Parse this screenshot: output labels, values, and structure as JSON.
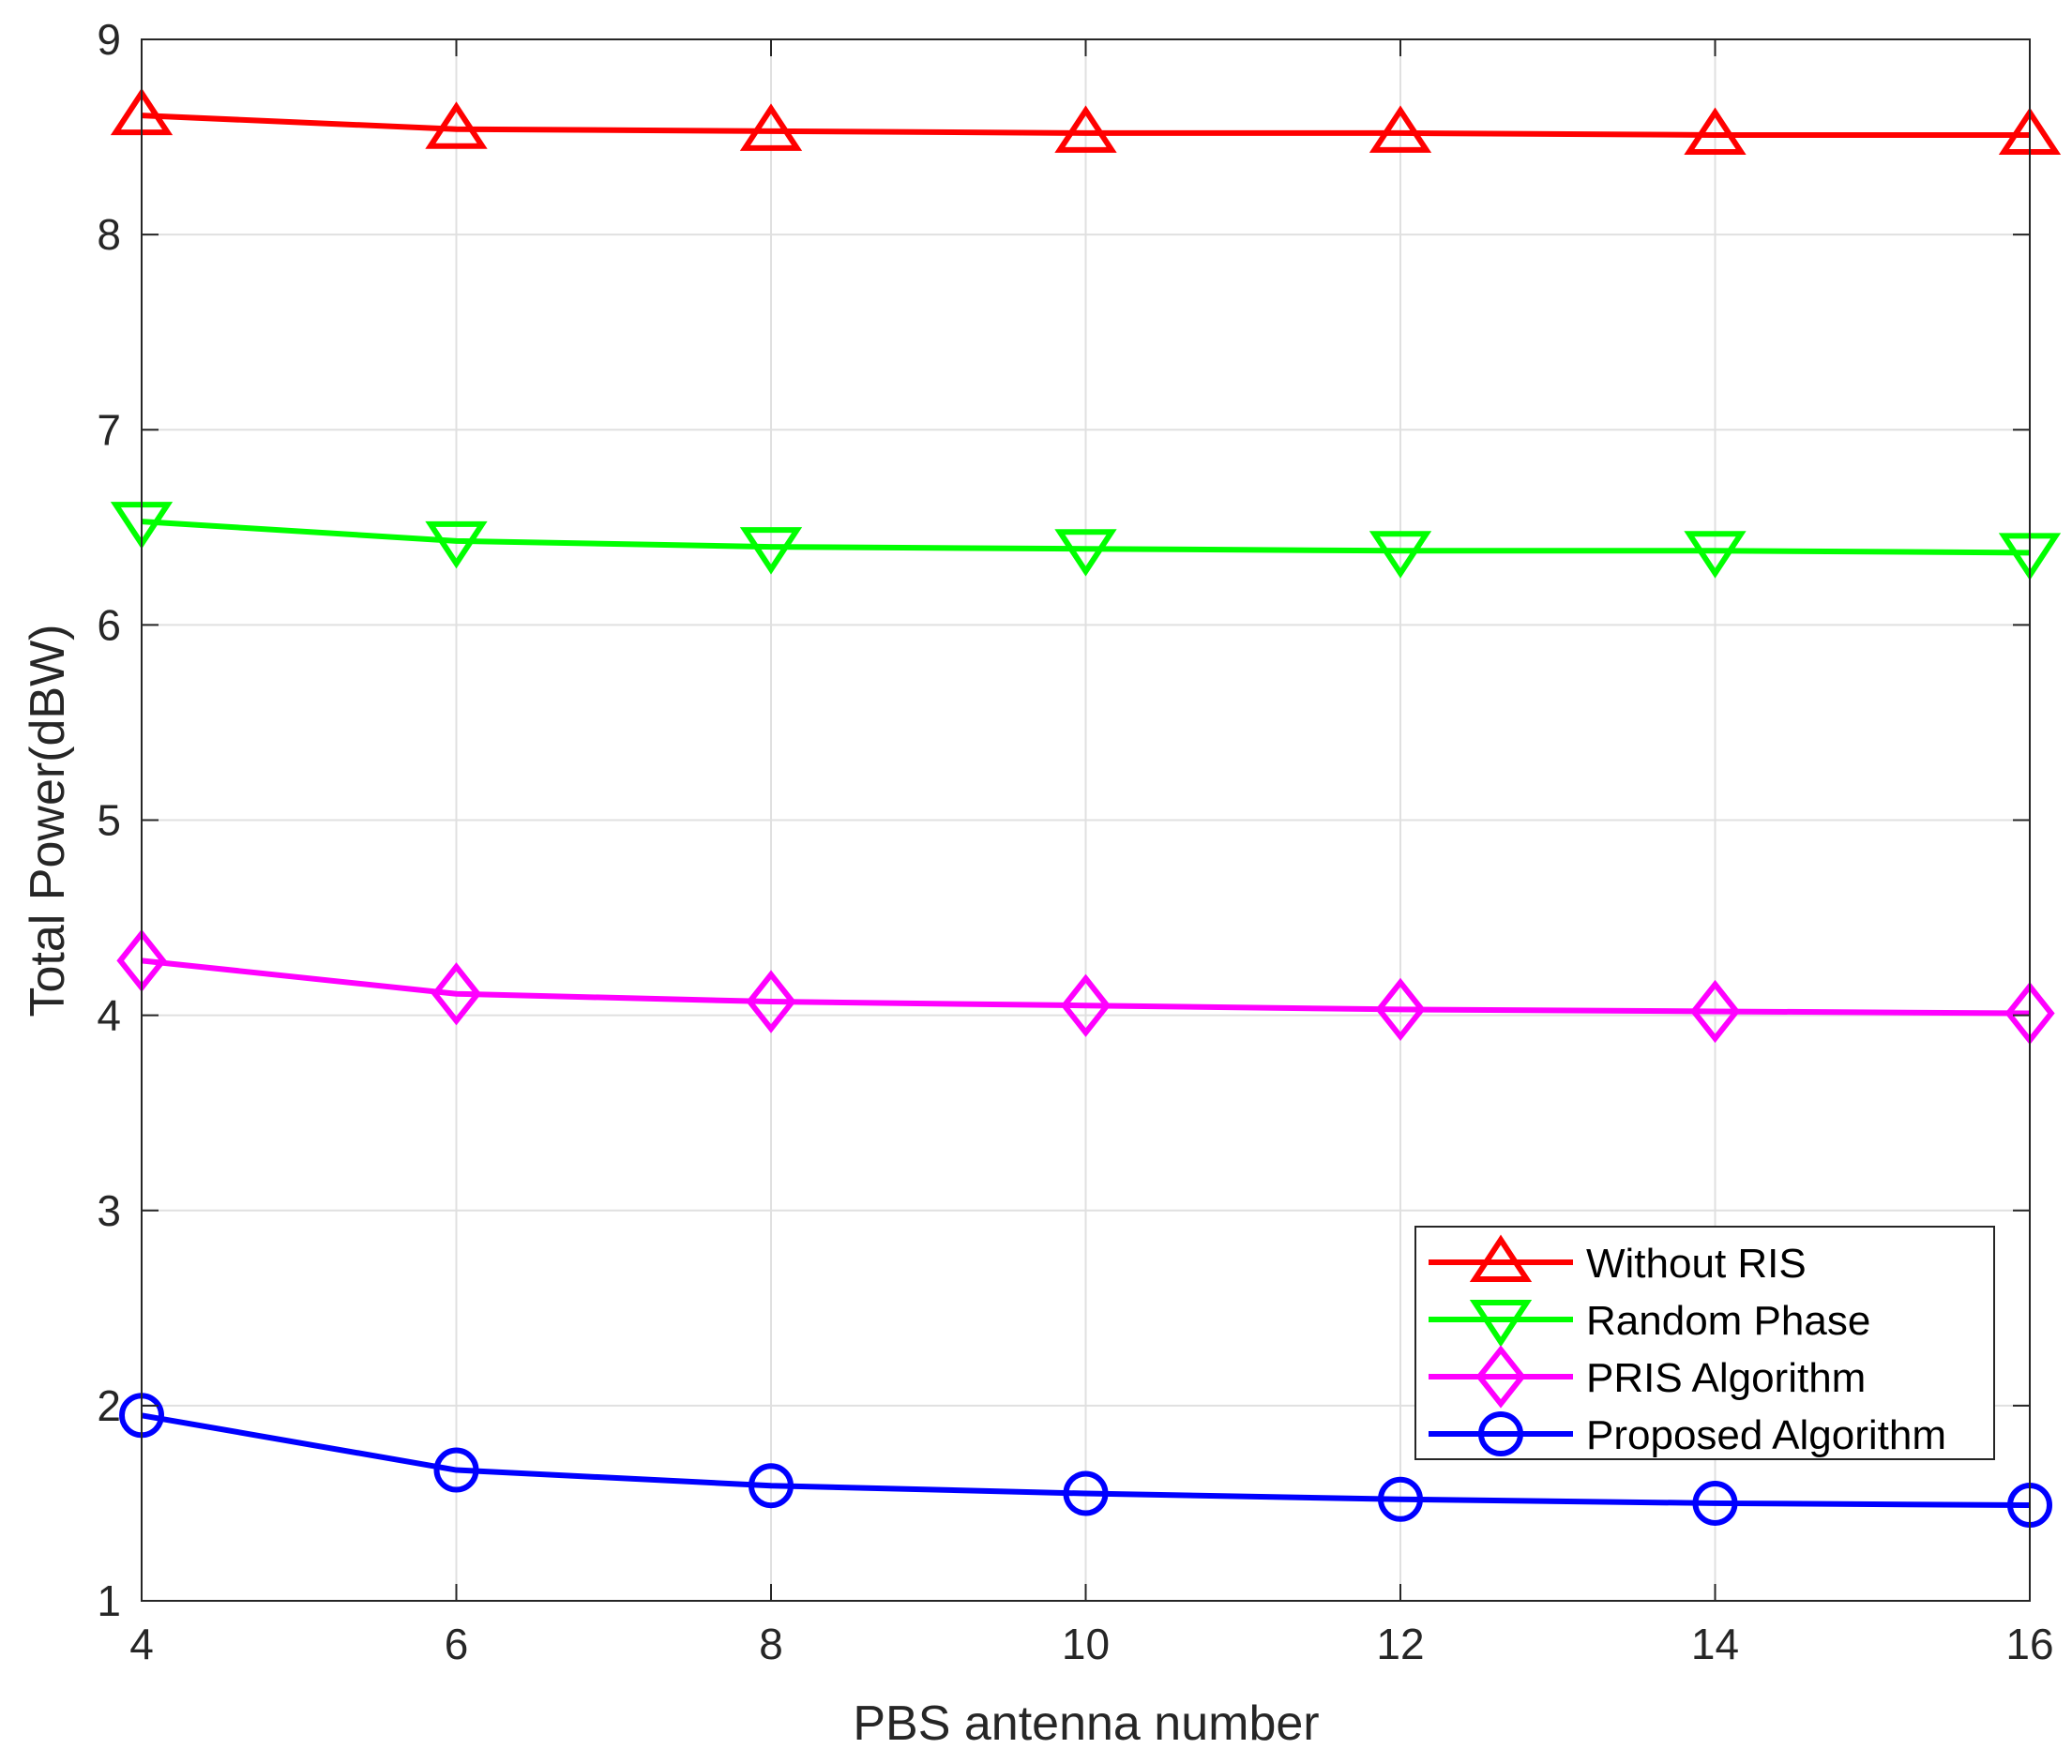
{
  "chart_data": {
    "type": "line",
    "title": "",
    "xlabel": "PBS antenna number",
    "ylabel": "Total Power(dBW)",
    "x": [
      4,
      6,
      8,
      10,
      12,
      14,
      16
    ],
    "xlim": [
      4,
      16
    ],
    "ylim": [
      1,
      9
    ],
    "xticks": [
      "4",
      "6",
      "8",
      "10",
      "12",
      "14",
      "16"
    ],
    "yticks": [
      "1",
      "2",
      "3",
      "4",
      "5",
      "6",
      "7",
      "8",
      "9"
    ],
    "grid": true,
    "legend_position": "bottom-right",
    "series": [
      {
        "name": "Without RIS",
        "color": "#ff0000",
        "marker": "triangle-up",
        "values": [
          8.61,
          8.54,
          8.53,
          8.52,
          8.52,
          8.51,
          8.51
        ]
      },
      {
        "name": "Random Phase",
        "color": "#00ff00",
        "marker": "triangle-down",
        "values": [
          6.53,
          6.43,
          6.4,
          6.39,
          6.38,
          6.38,
          6.37
        ]
      },
      {
        "name": "PRIS Algorithm",
        "color": "#ff00ff",
        "marker": "diamond",
        "values": [
          4.28,
          4.11,
          4.07,
          4.05,
          4.03,
          4.02,
          4.01
        ]
      },
      {
        "name": "Proposed Algorithm",
        "color": "#0000ff",
        "marker": "circle",
        "values": [
          1.95,
          1.67,
          1.59,
          1.55,
          1.52,
          1.5,
          1.49
        ]
      }
    ]
  }
}
